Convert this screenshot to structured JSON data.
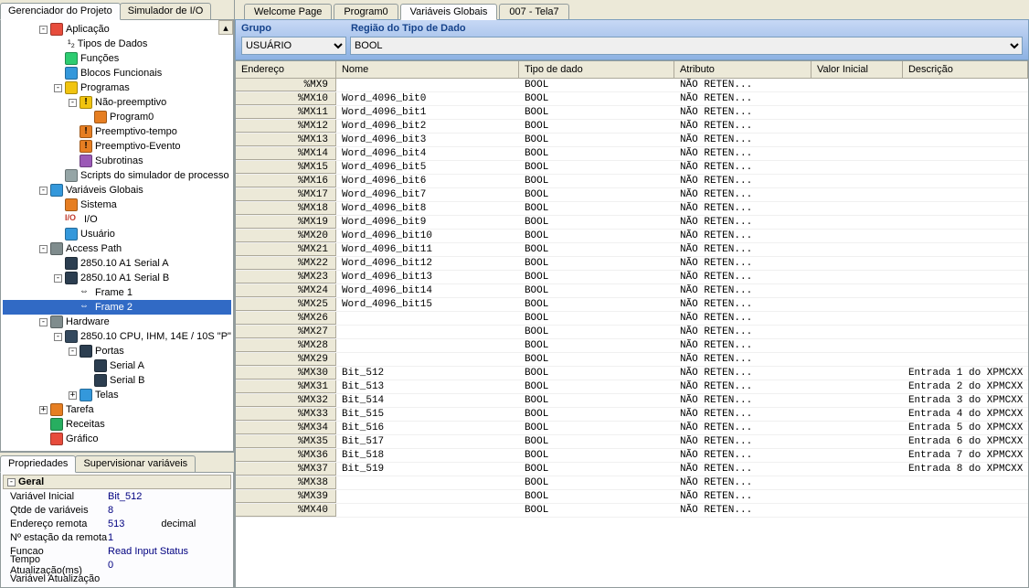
{
  "leftTabs": {
    "project": "Gerenciador do Projeto",
    "io": "Simulador de I/O"
  },
  "tree": [
    {
      "level": 0,
      "exp": "-",
      "icon": "#e74c3c",
      "label": "Aplicação"
    },
    {
      "level": 1,
      "exp": "",
      "icon": "",
      "label": "¹₂ Tipos de Dados",
      "textIcon": true
    },
    {
      "level": 1,
      "exp": "",
      "icon": "#2ecc71",
      "label": "Funções"
    },
    {
      "level": 1,
      "exp": "",
      "icon": "#3498db",
      "label": "Blocos Funcionais"
    },
    {
      "level": 1,
      "exp": "-",
      "icon": "#f1c40f",
      "label": "Programas"
    },
    {
      "level": 2,
      "exp": "-",
      "icon": "#f1c40f",
      "label": "Não-preemptivo",
      "alert": true
    },
    {
      "level": 3,
      "exp": "",
      "icon": "#e67e22",
      "label": "Program0"
    },
    {
      "level": 2,
      "exp": "",
      "icon": "#e67e22",
      "label": "Preemptivo-tempo",
      "alert": true
    },
    {
      "level": 2,
      "exp": "",
      "icon": "#e67e22",
      "label": "Preemptivo-Evento",
      "alert": true
    },
    {
      "level": 2,
      "exp": "",
      "icon": "#9b59b6",
      "label": "Subrotinas"
    },
    {
      "level": 1,
      "exp": "",
      "icon": "#95a5a6",
      "label": "Scripts do simulador de processo"
    },
    {
      "level": 0,
      "exp": "-",
      "icon": "#3498db",
      "label": "Variáveis Globais"
    },
    {
      "level": 1,
      "exp": "",
      "icon": "#e67e22",
      "label": "Sistema"
    },
    {
      "level": 1,
      "exp": "",
      "icon": "",
      "label": "I/O",
      "ioIcon": true
    },
    {
      "level": 1,
      "exp": "",
      "icon": "#3498db",
      "label": "Usuário"
    },
    {
      "level": 0,
      "exp": "-",
      "icon": "#7f8c8d",
      "label": "Access Path"
    },
    {
      "level": 1,
      "exp": "",
      "icon": "#2c3e50",
      "label": "2850.10 A1 Serial A"
    },
    {
      "level": 1,
      "exp": "-",
      "icon": "#2c3e50",
      "label": "2850.10 A1 Serial B"
    },
    {
      "level": 2,
      "exp": "",
      "icon": "",
      "label": "Frame 1",
      "frameIcon": true
    },
    {
      "level": 2,
      "exp": "",
      "icon": "",
      "label": "Frame 2",
      "frameIcon": true,
      "selected": true
    },
    {
      "level": 0,
      "exp": "-",
      "icon": "#7f8c8d",
      "label": "Hardware"
    },
    {
      "level": 1,
      "exp": "-",
      "icon": "#34495e",
      "label": "2850.10    CPU, IHM, 14E / 10S \"P\""
    },
    {
      "level": 2,
      "exp": "-",
      "icon": "#2c3e50",
      "label": "Portas"
    },
    {
      "level": 3,
      "exp": "",
      "icon": "#2c3e50",
      "label": "Serial A"
    },
    {
      "level": 3,
      "exp": "",
      "icon": "#2c3e50",
      "label": "Serial B"
    },
    {
      "level": 2,
      "exp": "+",
      "icon": "#3498db",
      "label": "Telas"
    },
    {
      "level": 0,
      "exp": "+",
      "icon": "#e67e22",
      "label": "Tarefa"
    },
    {
      "level": 0,
      "exp": "",
      "icon": "#27ae60",
      "label": "Receitas"
    },
    {
      "level": 0,
      "exp": "",
      "icon": "#e74c3c",
      "label": "Gráfico"
    }
  ],
  "bottomTabs": {
    "props": "Propriedades",
    "super": "Supervisionar variáveis"
  },
  "propsHeader": "Geral",
  "props": [
    {
      "label": "Variável Inicial",
      "value": "Bit_512"
    },
    {
      "label": "Qtde de variáveis",
      "value": "8"
    },
    {
      "label": "Endereço remota",
      "value": "513",
      "extra": "decimal"
    },
    {
      "label": "Nº estação da remota",
      "value": "1"
    },
    {
      "label": "Funcao",
      "value": "Read Input Status"
    },
    {
      "label": "Tempo Atualização(ms)",
      "value": "0"
    },
    {
      "label": "Variável Atualização",
      "value": ""
    }
  ],
  "editorTabs": [
    "Welcome Page",
    "Program0",
    "Variáveis Globais",
    "007 - Tela7"
  ],
  "activeEditorTab": 2,
  "filter": {
    "grupoLabel": "Grupo",
    "regiaoLabel": "Região do Tipo de Dado",
    "grupoValue": "USUÁRIO",
    "regiaoValue": "BOOL"
  },
  "gridCols": {
    "endereco": "Endereço",
    "nome": "Nome",
    "tipo": "Tipo de dado",
    "atributo": "Atributo",
    "valor": "Valor Inicial",
    "descricao": "Descrição"
  },
  "gridRows": [
    {
      "addr": "%MX9",
      "nome": "",
      "tipo": "BOOL",
      "attr": "NÃO RETEN...",
      "desc": ""
    },
    {
      "addr": "%MX10",
      "nome": "Word_4096_bit0",
      "tipo": "BOOL",
      "attr": "NÃO RETEN...",
      "desc": ""
    },
    {
      "addr": "%MX11",
      "nome": "Word_4096_bit1",
      "tipo": "BOOL",
      "attr": "NÃO RETEN...",
      "desc": ""
    },
    {
      "addr": "%MX12",
      "nome": "Word_4096_bit2",
      "tipo": "BOOL",
      "attr": "NÃO RETEN...",
      "desc": ""
    },
    {
      "addr": "%MX13",
      "nome": "Word_4096_bit3",
      "tipo": "BOOL",
      "attr": "NÃO RETEN...",
      "desc": ""
    },
    {
      "addr": "%MX14",
      "nome": "Word_4096_bit4",
      "tipo": "BOOL",
      "attr": "NÃO RETEN...",
      "desc": ""
    },
    {
      "addr": "%MX15",
      "nome": "Word_4096_bit5",
      "tipo": "BOOL",
      "attr": "NÃO RETEN...",
      "desc": ""
    },
    {
      "addr": "%MX16",
      "nome": "Word_4096_bit6",
      "tipo": "BOOL",
      "attr": "NÃO RETEN...",
      "desc": ""
    },
    {
      "addr": "%MX17",
      "nome": "Word_4096_bit7",
      "tipo": "BOOL",
      "attr": "NÃO RETEN...",
      "desc": ""
    },
    {
      "addr": "%MX18",
      "nome": "Word_4096_bit8",
      "tipo": "BOOL",
      "attr": "NÃO RETEN...",
      "desc": ""
    },
    {
      "addr": "%MX19",
      "nome": "Word_4096_bit9",
      "tipo": "BOOL",
      "attr": "NÃO RETEN...",
      "desc": ""
    },
    {
      "addr": "%MX20",
      "nome": "Word_4096_bit10",
      "tipo": "BOOL",
      "attr": "NÃO RETEN...",
      "desc": ""
    },
    {
      "addr": "%MX21",
      "nome": "Word_4096_bit11",
      "tipo": "BOOL",
      "attr": "NÃO RETEN...",
      "desc": ""
    },
    {
      "addr": "%MX22",
      "nome": "Word_4096_bit12",
      "tipo": "BOOL",
      "attr": "NÃO RETEN...",
      "desc": ""
    },
    {
      "addr": "%MX23",
      "nome": "Word_4096_bit13",
      "tipo": "BOOL",
      "attr": "NÃO RETEN...",
      "desc": ""
    },
    {
      "addr": "%MX24",
      "nome": "Word_4096_bit14",
      "tipo": "BOOL",
      "attr": "NÃO RETEN...",
      "desc": ""
    },
    {
      "addr": "%MX25",
      "nome": "Word_4096_bit15",
      "tipo": "BOOL",
      "attr": "NÃO RETEN...",
      "desc": ""
    },
    {
      "addr": "%MX26",
      "nome": "",
      "tipo": "BOOL",
      "attr": "NÃO RETEN...",
      "desc": ""
    },
    {
      "addr": "%MX27",
      "nome": "",
      "tipo": "BOOL",
      "attr": "NÃO RETEN...",
      "desc": ""
    },
    {
      "addr": "%MX28",
      "nome": "",
      "tipo": "BOOL",
      "attr": "NÃO RETEN...",
      "desc": ""
    },
    {
      "addr": "%MX29",
      "nome": "",
      "tipo": "BOOL",
      "attr": "NÃO RETEN...",
      "desc": ""
    },
    {
      "addr": "%MX30",
      "nome": "Bit_512",
      "tipo": "BOOL",
      "attr": "NÃO RETEN...",
      "desc": "Entrada 1 do XPMCXX"
    },
    {
      "addr": "%MX31",
      "nome": "Bit_513",
      "tipo": "BOOL",
      "attr": "NÃO RETEN...",
      "desc": "Entrada 2 do XPMCXX"
    },
    {
      "addr": "%MX32",
      "nome": "Bit_514",
      "tipo": "BOOL",
      "attr": "NÃO RETEN...",
      "desc": "Entrada 3 do XPMCXX"
    },
    {
      "addr": "%MX33",
      "nome": "Bit_515",
      "tipo": "BOOL",
      "attr": "NÃO RETEN...",
      "desc": "Entrada 4 do XPMCXX"
    },
    {
      "addr": "%MX34",
      "nome": "Bit_516",
      "tipo": "BOOL",
      "attr": "NÃO RETEN...",
      "desc": "Entrada 5 do XPMCXX"
    },
    {
      "addr": "%MX35",
      "nome": "Bit_517",
      "tipo": "BOOL",
      "attr": "NÃO RETEN...",
      "desc": "Entrada 6 do XPMCXX"
    },
    {
      "addr": "%MX36",
      "nome": "Bit_518",
      "tipo": "BOOL",
      "attr": "NÃO RETEN...",
      "desc": "Entrada 7 do XPMCXX"
    },
    {
      "addr": "%MX37",
      "nome": "Bit_519",
      "tipo": "BOOL",
      "attr": "NÃO RETEN...",
      "desc": "Entrada 8 do XPMCXX"
    },
    {
      "addr": "%MX38",
      "nome": "",
      "tipo": "BOOL",
      "attr": "NÃO RETEN...",
      "desc": ""
    },
    {
      "addr": "%MX39",
      "nome": "",
      "tipo": "BOOL",
      "attr": "NÃO RETEN...",
      "desc": ""
    },
    {
      "addr": "%MX40",
      "nome": "",
      "tipo": "BOOL",
      "attr": "NÃO RETEN...",
      "desc": ""
    }
  ]
}
